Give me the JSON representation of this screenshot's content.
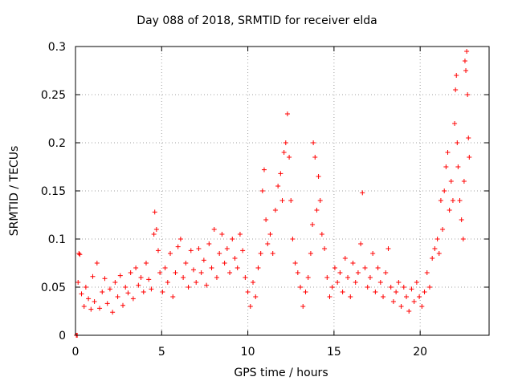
{
  "chart_data": {
    "type": "scatter",
    "title": "Day 088 of 2018, SRMTID for receiver elda",
    "xlabel": "GPS time / hours",
    "ylabel": "SRMTID / TECUs",
    "xlim": [
      0,
      24
    ],
    "ylim": [
      0,
      0.3
    ],
    "xticks": [
      0,
      5,
      10,
      15,
      20
    ],
    "yticks": [
      0,
      0.05,
      0.1,
      0.15,
      0.2,
      0.25,
      0.3
    ],
    "grid": true,
    "marker": "+",
    "series": [
      {
        "name": "SRMTID",
        "color": "#ff0000",
        "points": [
          [
            0.05,
            0.0
          ],
          [
            0.1,
            0.0
          ],
          [
            0.15,
            0.055
          ],
          [
            0.2,
            0.085
          ],
          [
            0.25,
            0.084
          ],
          [
            0.35,
            0.043
          ],
          [
            0.5,
            0.03
          ],
          [
            0.6,
            0.05
          ],
          [
            0.75,
            0.038
          ],
          [
            0.9,
            0.027
          ],
          [
            1.0,
            0.061
          ],
          [
            1.1,
            0.035
          ],
          [
            1.25,
            0.075
          ],
          [
            1.4,
            0.028
          ],
          [
            1.55,
            0.045
          ],
          [
            1.7,
            0.059
          ],
          [
            1.85,
            0.033
          ],
          [
            2.0,
            0.048
          ],
          [
            2.15,
            0.024
          ],
          [
            2.3,
            0.055
          ],
          [
            2.45,
            0.04
          ],
          [
            2.6,
            0.062
          ],
          [
            2.75,
            0.031
          ],
          [
            2.9,
            0.05
          ],
          [
            3.05,
            0.044
          ],
          [
            3.2,
            0.065
          ],
          [
            3.35,
            0.038
          ],
          [
            3.5,
            0.07
          ],
          [
            3.65,
            0.052
          ],
          [
            3.8,
            0.06
          ],
          [
            3.95,
            0.045
          ],
          [
            4.1,
            0.075
          ],
          [
            4.25,
            0.058
          ],
          [
            4.4,
            0.048
          ],
          [
            4.55,
            0.105
          ],
          [
            4.6,
            0.128
          ],
          [
            4.7,
            0.11
          ],
          [
            4.8,
            0.088
          ],
          [
            4.9,
            0.065
          ],
          [
            5.05,
            0.045
          ],
          [
            5.2,
            0.07
          ],
          [
            5.35,
            0.055
          ],
          [
            5.5,
            0.085
          ],
          [
            5.65,
            0.04
          ],
          [
            5.8,
            0.065
          ],
          [
            5.95,
            0.092
          ],
          [
            6.1,
            0.1
          ],
          [
            6.25,
            0.06
          ],
          [
            6.4,
            0.075
          ],
          [
            6.55,
            0.05
          ],
          [
            6.7,
            0.088
          ],
          [
            6.85,
            0.068
          ],
          [
            7.0,
            0.055
          ],
          [
            7.15,
            0.09
          ],
          [
            7.3,
            0.065
          ],
          [
            7.45,
            0.078
          ],
          [
            7.6,
            0.052
          ],
          [
            7.75,
            0.095
          ],
          [
            7.9,
            0.07
          ],
          [
            8.05,
            0.11
          ],
          [
            8.2,
            0.06
          ],
          [
            8.35,
            0.085
          ],
          [
            8.5,
            0.105
          ],
          [
            8.65,
            0.075
          ],
          [
            8.8,
            0.09
          ],
          [
            8.95,
            0.065
          ],
          [
            9.1,
            0.1
          ],
          [
            9.25,
            0.08
          ],
          [
            9.4,
            0.07
          ],
          [
            9.55,
            0.105
          ],
          [
            9.7,
            0.088
          ],
          [
            9.85,
            0.06
          ],
          [
            10.0,
            0.045
          ],
          [
            10.15,
            0.03
          ],
          [
            10.3,
            0.055
          ],
          [
            10.45,
            0.04
          ],
          [
            10.6,
            0.07
          ],
          [
            10.75,
            0.085
          ],
          [
            10.85,
            0.15
          ],
          [
            10.95,
            0.172
          ],
          [
            11.05,
            0.12
          ],
          [
            11.15,
            0.095
          ],
          [
            11.3,
            0.105
          ],
          [
            11.45,
            0.085
          ],
          [
            11.6,
            0.13
          ],
          [
            11.75,
            0.155
          ],
          [
            11.9,
            0.168
          ],
          [
            12.0,
            0.14
          ],
          [
            12.1,
            0.19
          ],
          [
            12.2,
            0.2
          ],
          [
            12.3,
            0.23
          ],
          [
            12.4,
            0.185
          ],
          [
            12.5,
            0.14
          ],
          [
            12.6,
            0.1
          ],
          [
            12.75,
            0.075
          ],
          [
            12.9,
            0.065
          ],
          [
            13.05,
            0.05
          ],
          [
            13.2,
            0.03
          ],
          [
            13.35,
            0.045
          ],
          [
            13.5,
            0.06
          ],
          [
            13.65,
            0.085
          ],
          [
            13.75,
            0.115
          ],
          [
            13.8,
            0.2
          ],
          [
            13.9,
            0.185
          ],
          [
            14.0,
            0.13
          ],
          [
            14.1,
            0.165
          ],
          [
            14.2,
            0.14
          ],
          [
            14.3,
            0.105
          ],
          [
            14.45,
            0.09
          ],
          [
            14.6,
            0.06
          ],
          [
            14.75,
            0.04
          ],
          [
            14.9,
            0.05
          ],
          [
            15.05,
            0.07
          ],
          [
            15.2,
            0.055
          ],
          [
            15.35,
            0.065
          ],
          [
            15.5,
            0.045
          ],
          [
            15.65,
            0.08
          ],
          [
            15.8,
            0.06
          ],
          [
            15.95,
            0.04
          ],
          [
            16.1,
            0.075
          ],
          [
            16.25,
            0.055
          ],
          [
            16.4,
            0.065
          ],
          [
            16.55,
            0.095
          ],
          [
            16.65,
            0.148
          ],
          [
            16.8,
            0.07
          ],
          [
            16.95,
            0.05
          ],
          [
            17.1,
            0.06
          ],
          [
            17.25,
            0.085
          ],
          [
            17.4,
            0.045
          ],
          [
            17.55,
            0.07
          ],
          [
            17.7,
            0.055
          ],
          [
            17.85,
            0.04
          ],
          [
            18.0,
            0.065
          ],
          [
            18.15,
            0.09
          ],
          [
            18.3,
            0.05
          ],
          [
            18.45,
            0.035
          ],
          [
            18.6,
            0.045
          ],
          [
            18.75,
            0.055
          ],
          [
            18.9,
            0.03
          ],
          [
            19.05,
            0.05
          ],
          [
            19.2,
            0.04
          ],
          [
            19.35,
            0.025
          ],
          [
            19.5,
            0.048
          ],
          [
            19.65,
            0.035
          ],
          [
            19.8,
            0.055
          ],
          [
            19.95,
            0.04
          ],
          [
            20.1,
            0.03
          ],
          [
            20.25,
            0.045
          ],
          [
            20.4,
            0.065
          ],
          [
            20.55,
            0.05
          ],
          [
            20.7,
            0.08
          ],
          [
            20.85,
            0.09
          ],
          [
            21.0,
            0.1
          ],
          [
            21.1,
            0.085
          ],
          [
            21.2,
            0.14
          ],
          [
            21.3,
            0.11
          ],
          [
            21.4,
            0.15
          ],
          [
            21.5,
            0.175
          ],
          [
            21.6,
            0.19
          ],
          [
            21.7,
            0.13
          ],
          [
            21.8,
            0.16
          ],
          [
            21.9,
            0.14
          ],
          [
            22.0,
            0.22
          ],
          [
            22.05,
            0.255
          ],
          [
            22.1,
            0.27
          ],
          [
            22.15,
            0.2
          ],
          [
            22.2,
            0.175
          ],
          [
            22.3,
            0.14
          ],
          [
            22.4,
            0.12
          ],
          [
            22.5,
            0.1
          ],
          [
            22.55,
            0.16
          ],
          [
            22.6,
            0.285
          ],
          [
            22.65,
            0.275
          ],
          [
            22.7,
            0.295
          ],
          [
            22.75,
            0.25
          ],
          [
            22.8,
            0.205
          ],
          [
            22.85,
            0.185
          ]
        ]
      }
    ]
  }
}
